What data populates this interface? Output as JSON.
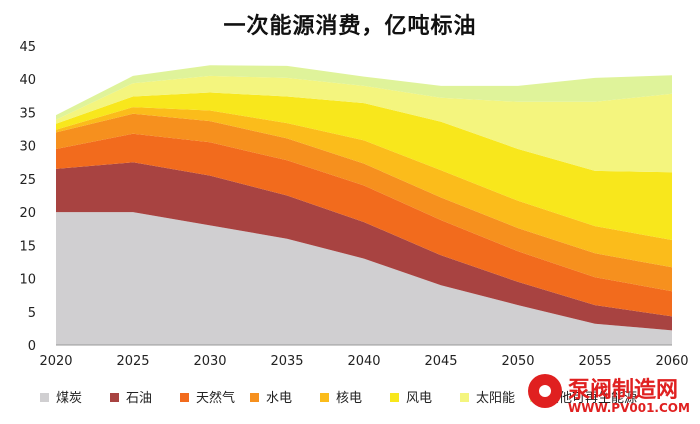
{
  "chart_data": {
    "type": "area",
    "title": "一次能源消费，亿吨标油",
    "x": [
      2020,
      2025,
      2030,
      2035,
      2040,
      2045,
      2050,
      2055,
      2060
    ],
    "ylim": [
      0,
      45
    ],
    "yticks": [
      0,
      5,
      10,
      15,
      20,
      25,
      30,
      35,
      40,
      45
    ],
    "grid": false,
    "legend_position": "bottom",
    "stacked": true,
    "series": [
      {
        "name": "煤炭",
        "color": "#d0cfd1",
        "values": [
          20,
          20,
          18,
          16,
          13,
          9,
          6,
          3.2,
          2.2
        ]
      },
      {
        "name": "石油",
        "color": "#a84341",
        "values": [
          6.5,
          7.5,
          7.5,
          6.5,
          5.5,
          4.5,
          3.5,
          2.8,
          2.1
        ]
      },
      {
        "name": "天然气",
        "color": "#f26b1d",
        "values": [
          3,
          4.3,
          5,
          5.3,
          5.5,
          5.3,
          4.6,
          4.2,
          3.8
        ]
      },
      {
        "name": "水电",
        "color": "#f6901e",
        "values": [
          2.5,
          3,
          3.2,
          3.3,
          3.3,
          3.4,
          3.5,
          3.6,
          3.6
        ]
      },
      {
        "name": "核电",
        "color": "#fbbc1b",
        "values": [
          0.4,
          1,
          1.6,
          2.3,
          3.5,
          4.1,
          4.1,
          4.1,
          4.1
        ]
      },
      {
        "name": "风电",
        "color": "#f8e71c",
        "values": [
          0.9,
          1.6,
          2.7,
          4,
          5.6,
          7.3,
          7.8,
          8.3,
          10.2
        ]
      },
      {
        "name": "太阳能",
        "color": "#f4f57e",
        "values": [
          0.6,
          2,
          2.5,
          2.8,
          2.6,
          3.6,
          7.1,
          10.4,
          11.8
        ]
      },
      {
        "name": "其他可再生能源",
        "color": "#dff39a",
        "values": [
          0.7,
          1.1,
          1.6,
          1.8,
          1.4,
          1.8,
          2.4,
          3.6,
          2.8
        ]
      }
    ]
  }
}
